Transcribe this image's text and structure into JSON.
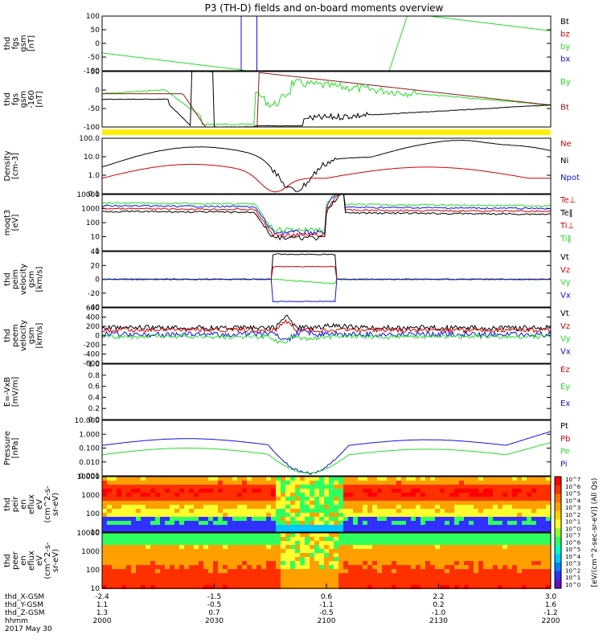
{
  "title": "P3 (TH-D) fields and on-board moments overview",
  "colors": {
    "black": "#000000",
    "red": "#d40000",
    "green": "#22dd22",
    "blue": "#1010e0",
    "darkred": "#8b1a1a",
    "yellow": "#ffee00"
  },
  "chart_data": {
    "type": "line",
    "x_tick_labels_hhmm": [
      "2000",
      "2030",
      "2100",
      "2130",
      "2200"
    ],
    "panels": [
      {
        "ylabel": [
          "thd",
          "fgs",
          "gsm",
          "[nT]"
        ],
        "ylim": [
          -100,
          100
        ],
        "ticks": [
          "100",
          "50",
          "0",
          "-50",
          "-100"
        ],
        "legend": [
          {
            "name": "Bt",
            "color": "#000000"
          },
          {
            "name": "bz",
            "color": "#d40000"
          },
          {
            "name": "by",
            "color": "#22dd22"
          },
          {
            "name": "bx",
            "color": "#1010e0"
          }
        ]
      },
      {
        "ylabel": [
          "thd",
          "fgs",
          "gsm",
          "-160",
          "[nT]"
        ],
        "ylim": [
          -120,
          60
        ],
        "ticks": [
          "50",
          "0",
          "-50",
          "-100"
        ],
        "legend": [
          {
            "name": "By",
            "color": "#22dd22"
          },
          {
            "name": "Bt",
            "color": "#8b1a1a"
          }
        ]
      },
      {
        "ylabel": [
          "Density",
          "[cm-3]"
        ],
        "scale": "log",
        "ticks": [
          "100.0",
          "10.0",
          "1.0",
          "0.1"
        ],
        "legend": [
          {
            "name": "Ne",
            "color": "#d40000"
          },
          {
            "name": "Ni",
            "color": "#000000"
          },
          {
            "name": "Npot",
            "color": "#1010e0"
          }
        ]
      },
      {
        "ylabel": [
          "moqt3",
          "[eV]"
        ],
        "scale": "log",
        "ticks": [
          "10000",
          "1000",
          "100",
          "10",
          "1"
        ],
        "legend": [
          {
            "name": "Te⊥",
            "color": "#d40000"
          },
          {
            "name": "Te‖",
            "color": "#000000"
          },
          {
            "name": "Ti⊥",
            "color": "#d40000"
          },
          {
            "name": "Ti‖",
            "color": "#22dd22"
          }
        ]
      },
      {
        "ylabel": [
          "thd",
          "peim",
          "velocity",
          "gsm",
          "[km/s]"
        ],
        "ylim": [
          -40,
          40
        ],
        "ticks": [
          "40",
          "20",
          "0",
          "-20",
          "-40"
        ],
        "legend": [
          {
            "name": "Vt",
            "color": "#000000"
          },
          {
            "name": "Vz",
            "color": "#d40000"
          },
          {
            "name": "Vy",
            "color": "#22dd22"
          },
          {
            "name": "Vx",
            "color": "#1010e0"
          }
        ]
      },
      {
        "ylabel": [
          "thd",
          "peem",
          "velocity",
          "gsm",
          "[km/s]"
        ],
        "ylim": [
          -600,
          600
        ],
        "ticks": [
          "600",
          "400",
          "200",
          "0",
          "-200",
          "-400",
          "-600"
        ],
        "legend": [
          {
            "name": "Vt",
            "color": "#000000"
          },
          {
            "name": "Vz",
            "color": "#d40000"
          },
          {
            "name": "Vy",
            "color": "#22dd22"
          },
          {
            "name": "Vx",
            "color": "#1010e0"
          }
        ]
      },
      {
        "ylabel": [
          "E=-VxB",
          "[mV/m]"
        ],
        "ylim": [
          0,
          1
        ],
        "ticks": [
          "1.0",
          "0.8",
          "0.6",
          "0.4",
          "0.2",
          "0.0"
        ],
        "legend": [
          {
            "name": "Ez",
            "color": "#d40000"
          },
          {
            "name": "Ey",
            "color": "#22dd22"
          },
          {
            "name": "Ex",
            "color": "#1010e0"
          }
        ]
      },
      {
        "ylabel": [
          "Pressure",
          "[nPa]"
        ],
        "scale": "log",
        "ticks": [
          "10.000",
          "1.000",
          "0.100",
          "0.010",
          "0.001"
        ],
        "legend": [
          {
            "name": "Pt",
            "color": "#000000"
          },
          {
            "name": "Pb",
            "color": "#d40000"
          },
          {
            "name": "Pe",
            "color": "#22dd22"
          },
          {
            "name": "Pi",
            "color": "#1010e0"
          }
        ]
      },
      {
        "ylabel": [
          "thd",
          "peir",
          "en",
          "eflux",
          "eV",
          "(cm^2-s-",
          "sr-eV)"
        ],
        "type": "spectrogram",
        "ticks": [
          "10000",
          "1000",
          "100",
          "10"
        ]
      },
      {
        "ylabel": [
          "thd",
          "peer",
          "en",
          "eflux",
          "eV",
          "(cm^2-s-",
          "sr-eV)"
        ],
        "type": "spectrogram",
        "ticks": [
          "10000",
          "1000",
          "100",
          "10"
        ]
      }
    ],
    "colorbar": {
      "label": "[eV/(cm^2-sec-sr-eV)] (All Qs)",
      "ticks": [
        "10^7",
        "10^6",
        "10^5",
        "10^4",
        "10^3",
        "10^2",
        "10^1",
        "10^0"
      ],
      "ticks_lower": [
        "10^7",
        "10^6",
        "10^5",
        "10^4",
        "10^3",
        "10^2",
        "10^1",
        "10^0"
      ]
    },
    "ephemeris": {
      "labels": [
        "thd_X-GSM",
        "thd_Y-GSM",
        "thd_Z-GSM",
        "hhmm",
        "2017 May 30"
      ],
      "x": [
        "-2.4",
        "-1.5",
        "0.6",
        "2.2",
        "3.0"
      ],
      "y": [
        "1.1",
        "-0.5",
        "-1.1",
        "0.2",
        "1.6"
      ],
      "z": [
        "1.3",
        "0.7",
        "-0.5",
        "-1.0",
        "-1.2"
      ],
      "hhmm": [
        "2000",
        "2030",
        "2100",
        "2130",
        "2200"
      ]
    }
  }
}
